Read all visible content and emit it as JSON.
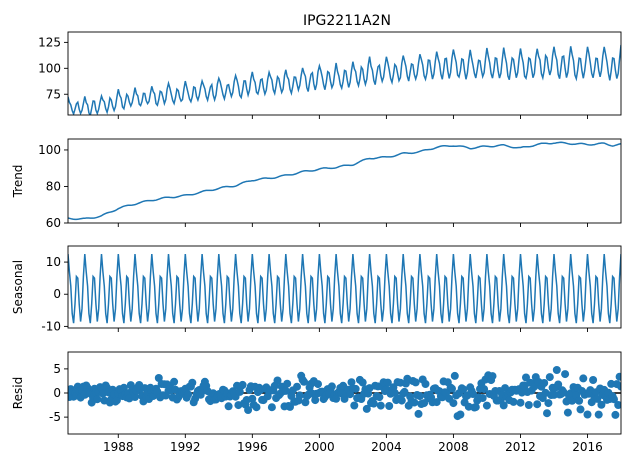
{
  "chart_data": {
    "type": "line",
    "title": "IPG2211A2N",
    "xlabel": "",
    "x_range": [
      1985.0,
      2018.0
    ],
    "x_ticks": [
      1988,
      1992,
      1996,
      2000,
      2004,
      2008,
      2012,
      2016
    ],
    "x_tick_labels": [
      "1988",
      "1992",
      "1996",
      "2000",
      "2004",
      "2008",
      "2012",
      "2016"
    ],
    "series_color": "#1f77b4",
    "panels": [
      {
        "name": "observed",
        "ylabel": "",
        "ylim": [
          55,
          135
        ],
        "yticks": [
          75,
          100,
          125
        ],
        "style": "line",
        "model": {
          "trend_from": "trend",
          "amplitude_start": 10,
          "amplitude_end": 19
        }
      },
      {
        "name": "trend",
        "ylabel": "Trend",
        "ylim": [
          60,
          106
        ],
        "yticks": [
          60,
          80,
          100
        ],
        "style": "line",
        "points": [
          [
            1985.0,
            62.5
          ],
          [
            1986.0,
            62.2
          ],
          [
            1987.0,
            63.8
          ],
          [
            1988.0,
            68.0
          ],
          [
            1989.0,
            70.5
          ],
          [
            1990.0,
            72.5
          ],
          [
            1991.0,
            74.0
          ],
          [
            1992.0,
            75.0
          ],
          [
            1993.0,
            77.0
          ],
          [
            1994.0,
            79.0
          ],
          [
            1995.0,
            80.5
          ],
          [
            1996.0,
            83.5
          ],
          [
            1997.0,
            84.5
          ],
          [
            1998.0,
            86.0
          ],
          [
            1999.0,
            88.0
          ],
          [
            2000.0,
            89.5
          ],
          [
            2001.0,
            90.5
          ],
          [
            2002.0,
            92.0
          ],
          [
            2003.0,
            95.5
          ],
          [
            2004.0,
            96.0
          ],
          [
            2005.0,
            98.0
          ],
          [
            2006.0,
            99.0
          ],
          [
            2007.0,
            101.5
          ],
          [
            2008.0,
            102.5
          ],
          [
            2009.0,
            101.0
          ],
          [
            2010.0,
            102.0
          ],
          [
            2011.0,
            102.5
          ],
          [
            2012.0,
            101.0
          ],
          [
            2013.0,
            103.0
          ],
          [
            2014.0,
            104.0
          ],
          [
            2015.0,
            103.5
          ],
          [
            2016.0,
            103.0
          ],
          [
            2017.0,
            103.5
          ],
          [
            2017.5,
            102.5
          ],
          [
            2018.0,
            103.0
          ]
        ]
      },
      {
        "name": "seasonal",
        "ylabel": "Seasonal",
        "ylim": [
          -10.5,
          15
        ],
        "yticks": [
          -10,
          0,
          10
        ],
        "style": "line",
        "monthly_pattern": [
          12.5,
          7.0,
          2.5,
          -6.0,
          -9.0,
          -3.0,
          5.5,
          5.0,
          -3.0,
          -8.5,
          -4.5,
          5.5
        ]
      },
      {
        "name": "resid",
        "ylabel": "Resid",
        "ylim": [
          -8.5,
          8.5
        ],
        "yticks": [
          -5,
          0,
          5
        ],
        "style": "scatter",
        "zero_line": true,
        "spread_start": 2.0,
        "spread_end": 4.5
      }
    ]
  }
}
